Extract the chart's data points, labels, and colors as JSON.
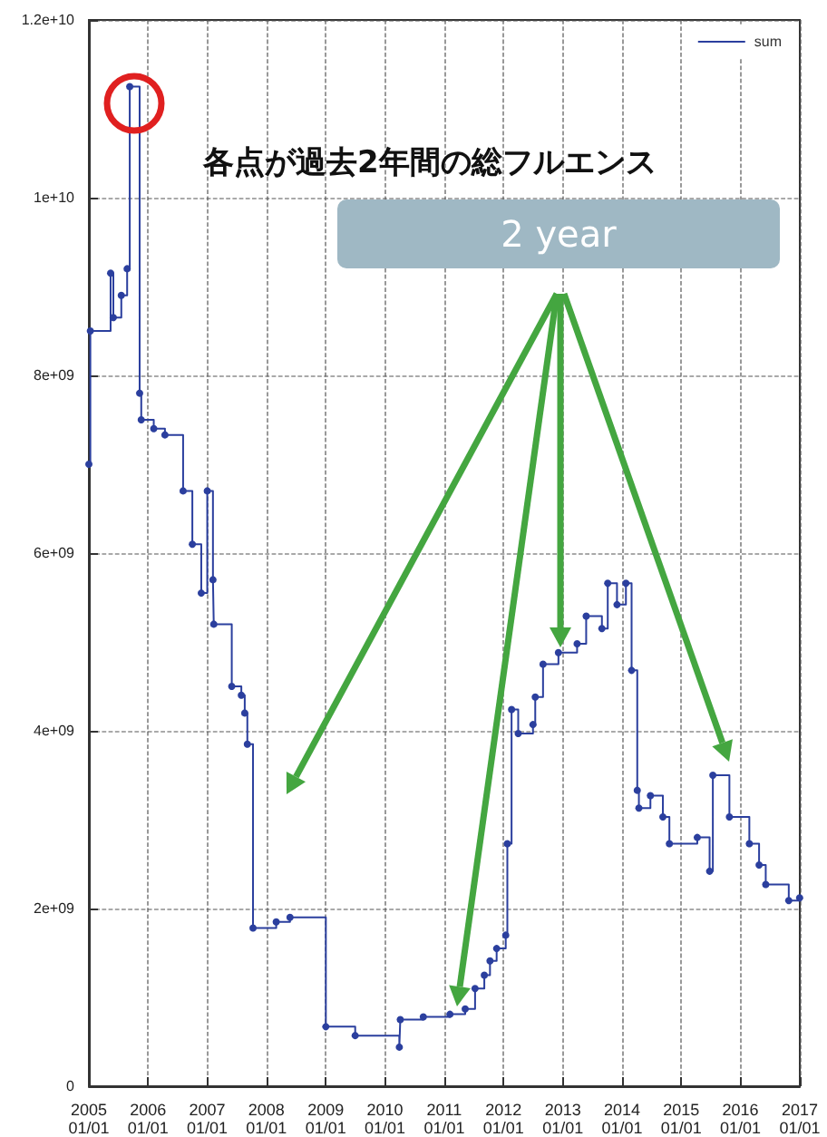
{
  "chart_data": {
    "type": "step",
    "annotations": [
      "各点が過去2年間の総フルエンス",
      "2 year"
    ],
    "x": [
      "2005-01-01",
      "2005-01-10",
      "2005-05-15",
      "2005-06-01",
      "2005-07-20",
      "2005-08-25",
      "2005-09-10",
      "2005-11-10",
      "2005-11-20",
      "2006-02-05",
      "2006-04-15",
      "2006-08-05",
      "2006-10-01",
      "2006-11-25",
      "2007-01-01",
      "2007-02-05",
      "2007-02-10",
      "2007-06-01",
      "2007-07-30",
      "2007-08-20",
      "2007-09-05",
      "2007-10-10",
      "2008-03-01",
      "2008-05-25",
      "2009-01-01",
      "2009-07-01",
      "2010-03-30",
      "2010-04-05",
      "2010-08-25",
      "2011-02-05",
      "2011-05-10",
      "2011-07-10",
      "2011-09-05",
      "2011-10-10",
      "2011-11-20",
      "2012-01-15",
      "2012-01-25",
      "2012-02-20",
      "2012-04-01",
      "2012-07-01",
      "2012-07-15",
      "2012-09-01",
      "2012-12-05",
      "2013-03-30",
      "2013-05-25",
      "2013-08-30",
      "2013-10-05",
      "2013-12-01",
      "2014-01-25",
      "2014-03-01",
      "2014-04-05",
      "2014-04-15",
      "2014-06-25",
      "2014-09-10",
      "2014-10-20",
      "2015-04-10",
      "2015-06-25",
      "2015-07-15",
      "2015-10-25",
      "2016-02-25",
      "2016-04-25",
      "2016-06-05",
      "2016-10-25",
      "2016-12-31"
    ],
    "series": [
      {
        "name": "sum",
        "color": "#2b3f9e",
        "values": [
          7000000000,
          8500000000,
          9150000000,
          8650000000,
          8900000000,
          9200000000,
          11250000000,
          7800000000,
          7500000000,
          7400000000,
          7330000000,
          6700000000,
          6100000000,
          5550000000,
          6700000000,
          5700000000,
          5200000000,
          4500000000,
          4400000000,
          4200000000,
          3850000000,
          1780000000,
          1850000000,
          1900000000,
          670000000,
          570000000,
          440000000,
          750000000,
          780000000,
          810000000,
          870000000,
          1100000000,
          1250000000,
          1410000000,
          1550000000,
          1700000000,
          2730000000,
          4240000000,
          3970000000,
          4070000000,
          4380000000,
          4750000000,
          4880000000,
          4980000000,
          5290000000,
          5150000000,
          5660000000,
          5420000000,
          5660000000,
          4680000000,
          3330000000,
          3130000000,
          3270000000,
          3030000000,
          2730000000,
          2800000000,
          2420000000,
          3500000000,
          3030000000,
          2730000000,
          2490000000,
          2270000000,
          2090000000,
          2120000000
        ]
      }
    ],
    "xlim": [
      "2005-01-01",
      "2017-01-01"
    ],
    "xticks": [
      {
        "value": "2005-01-01",
        "label": "2005\n01/01"
      },
      {
        "value": "2006-01-01",
        "label": "2006\n01/01"
      },
      {
        "value": "2007-01-01",
        "label": "2007\n01/01"
      },
      {
        "value": "2008-01-01",
        "label": "2008\n01/01"
      },
      {
        "value": "2009-01-01",
        "label": "2009\n01/01"
      },
      {
        "value": "2010-01-01",
        "label": "2010\n01/01"
      },
      {
        "value": "2011-01-01",
        "label": "2011\n01/01"
      },
      {
        "value": "2012-01-01",
        "label": "2012\n01/01"
      },
      {
        "value": "2013-01-01",
        "label": "2013\n01/01"
      },
      {
        "value": "2014-01-01",
        "label": "2014\n01/01"
      },
      {
        "value": "2015-01-01",
        "label": "2015\n01/01"
      },
      {
        "value": "2016-01-01",
        "label": "2016\n01/01"
      },
      {
        "value": "2017-01-01",
        "label": "2017\n01/01"
      }
    ],
    "ylim": [
      0,
      12000000000
    ],
    "yticks": [
      0,
      {
        "value": 2000000000,
        "label": "2e+09"
      },
      {
        "value": 4000000000,
        "label": "4e+09"
      },
      {
        "value": 6000000000,
        "label": "6e+09"
      },
      {
        "value": 8000000000,
        "label": "8e+09"
      },
      {
        "value": 10000000000,
        "label": "1e+10"
      },
      {
        "value": 12000000000,
        "label": "1.2e+10"
      }
    ],
    "grid": true,
    "legend": "top right",
    "marker": "circle",
    "line_style": "solid"
  }
}
